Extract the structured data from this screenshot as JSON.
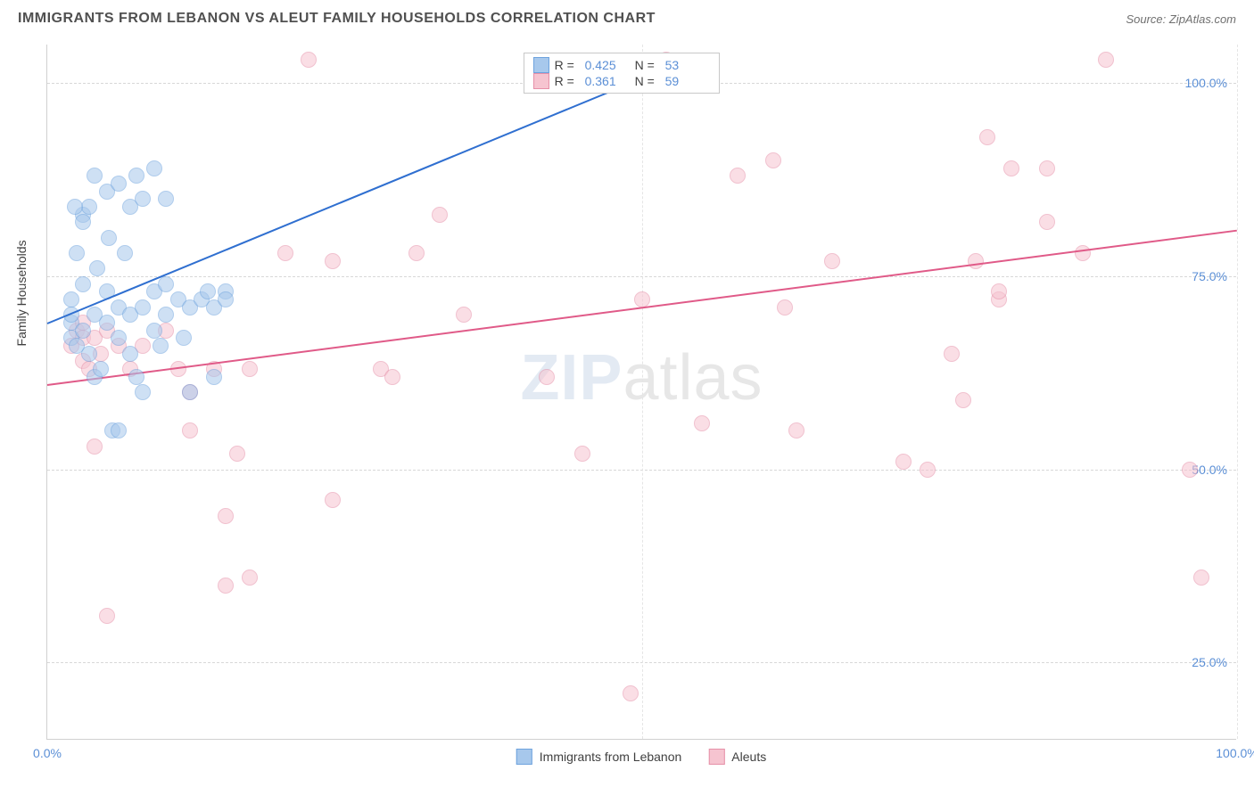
{
  "header": {
    "title": "IMMIGRANTS FROM LEBANON VS ALEUT FAMILY HOUSEHOLDS CORRELATION CHART",
    "source": "Source: ZipAtlas.com"
  },
  "watermark": {
    "bold": "ZIP",
    "light": "atlas"
  },
  "chart": {
    "type": "scatter",
    "y_axis_title": "Family Households",
    "xlim": [
      0,
      100
    ],
    "ylim": [
      15,
      105
    ],
    "y_ticks": [
      25,
      50,
      75,
      100
    ],
    "y_tick_labels": [
      "25.0%",
      "50.0%",
      "75.0%",
      "100.0%"
    ],
    "x_ticks": [
      0,
      50,
      100
    ],
    "x_tick_labels": [
      "0.0%",
      "",
      "100.0%"
    ],
    "grid_color": "#d8d8d8",
    "background_color": "#ffffff",
    "marker_radius": 9,
    "marker_opacity": 0.55,
    "series": [
      {
        "name": "Immigrants from Lebanon",
        "color_fill": "#a7c8ec",
        "color_stroke": "#6ea3de",
        "R": "0.425",
        "N": "53",
        "trend": {
          "x1": 0,
          "y1": 69,
          "x2": 52,
          "y2": 102,
          "color": "#2f6fd0"
        },
        "points": [
          [
            2,
            67
          ],
          [
            2,
            69
          ],
          [
            2,
            70
          ],
          [
            2,
            72
          ],
          [
            2.5,
            66
          ],
          [
            2.5,
            78
          ],
          [
            3,
            68
          ],
          [
            3,
            74
          ],
          [
            3,
            83
          ],
          [
            3.5,
            65
          ],
          [
            3.5,
            84
          ],
          [
            4,
            62
          ],
          [
            4,
            70
          ],
          [
            4,
            88
          ],
          [
            4.5,
            63
          ],
          [
            5,
            69
          ],
          [
            5,
            73
          ],
          [
            5,
            86
          ],
          [
            5.5,
            55
          ],
          [
            6,
            67
          ],
          [
            6,
            71
          ],
          [
            6,
            87
          ],
          [
            6.5,
            78
          ],
          [
            7,
            65
          ],
          [
            7,
            70
          ],
          [
            7,
            84
          ],
          [
            7.5,
            88
          ],
          [
            8,
            60
          ],
          [
            8,
            71
          ],
          [
            8,
            85
          ],
          [
            9,
            68
          ],
          [
            9,
            73
          ],
          [
            9,
            89
          ],
          [
            9.5,
            66
          ],
          [
            10,
            70
          ],
          [
            10,
            74
          ],
          [
            10,
            85
          ],
          [
            11,
            72
          ],
          [
            11.5,
            67
          ],
          [
            12,
            71
          ],
          [
            12,
            60
          ],
          [
            13,
            72
          ],
          [
            13.5,
            73
          ],
          [
            14,
            62
          ],
          [
            14,
            71
          ],
          [
            15,
            73
          ],
          [
            15,
            72
          ],
          [
            6,
            55
          ],
          [
            7.5,
            62
          ],
          [
            3,
            82
          ],
          [
            2.3,
            84
          ],
          [
            5.2,
            80
          ],
          [
            4.2,
            76
          ]
        ]
      },
      {
        "name": "Aleuts",
        "color_fill": "#f6c4d0",
        "color_stroke": "#e690a8",
        "R": "0.361",
        "N": "59",
        "trend": {
          "x1": 0,
          "y1": 61,
          "x2": 100,
          "y2": 81,
          "color": "#e05a88"
        },
        "points": [
          [
            2,
            66
          ],
          [
            2.5,
            68
          ],
          [
            3,
            67
          ],
          [
            3,
            64
          ],
          [
            3.5,
            63
          ],
          [
            4,
            67
          ],
          [
            4,
            53
          ],
          [
            4.5,
            65
          ],
          [
            5,
            31
          ],
          [
            5,
            68
          ],
          [
            6,
            66
          ],
          [
            7,
            63
          ],
          [
            8,
            66
          ],
          [
            10,
            68
          ],
          [
            11,
            63
          ],
          [
            12,
            60
          ],
          [
            12,
            55
          ],
          [
            14,
            63
          ],
          [
            15,
            35
          ],
          [
            15,
            44
          ],
          [
            16,
            52
          ],
          [
            17,
            36
          ],
          [
            17,
            63
          ],
          [
            20,
            78
          ],
          [
            22,
            103
          ],
          [
            24,
            77
          ],
          [
            24,
            46
          ],
          [
            28,
            63
          ],
          [
            29,
            62
          ],
          [
            31,
            78
          ],
          [
            33,
            83
          ],
          [
            35,
            70
          ],
          [
            42,
            62
          ],
          [
            45,
            52
          ],
          [
            49,
            21
          ],
          [
            50,
            72
          ],
          [
            52,
            103
          ],
          [
            55,
            56
          ],
          [
            58,
            88
          ],
          [
            61,
            90
          ],
          [
            62,
            71
          ],
          [
            63,
            55
          ],
          [
            66,
            77
          ],
          [
            72,
            51
          ],
          [
            74,
            50
          ],
          [
            76,
            65
          ],
          [
            77,
            59
          ],
          [
            78,
            77
          ],
          [
            79,
            93
          ],
          [
            80,
            72
          ],
          [
            80,
            73
          ],
          [
            81,
            89
          ],
          [
            84,
            82
          ],
          [
            84,
            89
          ],
          [
            87,
            78
          ],
          [
            89,
            103
          ],
          [
            96,
            50
          ],
          [
            97,
            36
          ],
          [
            3,
            69
          ]
        ]
      }
    ],
    "legend_top": {
      "r_label": "R =",
      "n_label": "N ="
    },
    "legend_bottom_labels": [
      "Immigrants from Lebanon",
      "Aleuts"
    ]
  }
}
